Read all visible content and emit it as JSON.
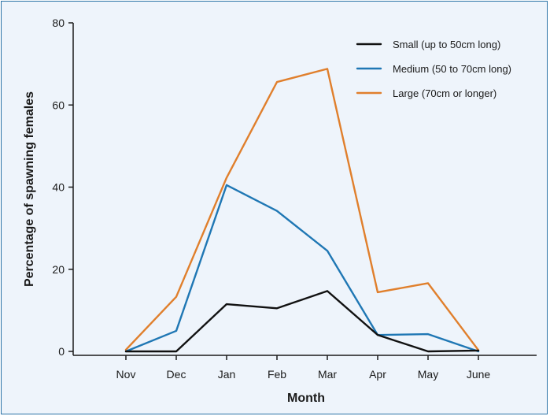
{
  "chart_data": {
    "type": "line",
    "title": "",
    "xlabel": "Month",
    "ylabel": "Percentage of spawning females",
    "categories": [
      "Nov",
      "Dec",
      "Jan",
      "Feb",
      "Mar",
      "Apr",
      "May",
      "June"
    ],
    "ylim": [
      0,
      80
    ],
    "yticks": [
      0,
      20,
      40,
      60,
      80
    ],
    "grid": false,
    "legend_position": "top-right",
    "series": [
      {
        "name": "Small (up to 50cm long)",
        "color": "#111111",
        "values": [
          0,
          0,
          11.5,
          10.5,
          14.7,
          4,
          0,
          0.2
        ]
      },
      {
        "name": "Medium (50 to 70cm long)",
        "color": "#1f77b4",
        "values": [
          0,
          5,
          40.5,
          34.2,
          24.5,
          4,
          4.2,
          0
        ]
      },
      {
        "name": "Large (70cm or longer)",
        "color": "#e07f2c",
        "values": [
          0.4,
          13.3,
          42.3,
          65.6,
          68.8,
          14.4,
          16.6,
          0.3
        ]
      }
    ]
  }
}
